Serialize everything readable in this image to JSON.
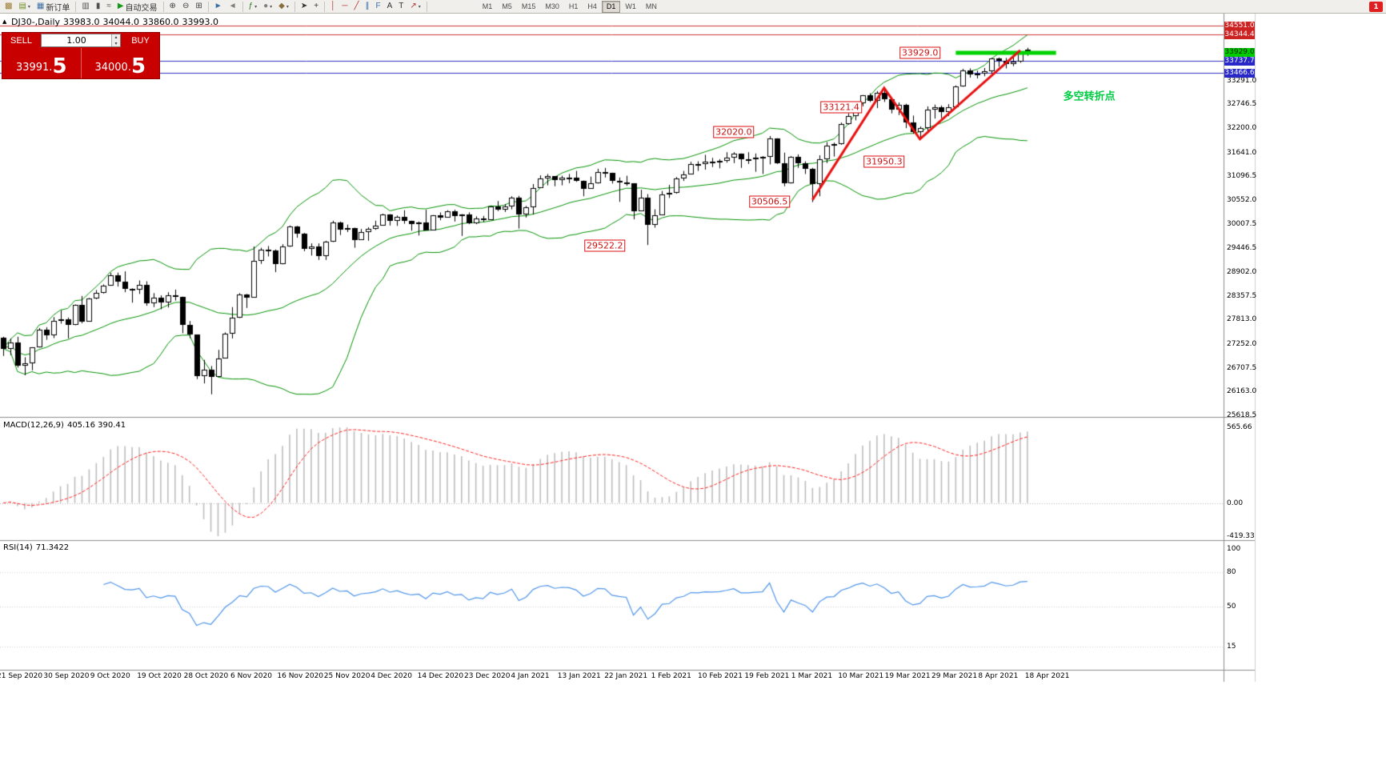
{
  "toolbar": {
    "items": [
      {
        "type": "btn",
        "name": "new-chart",
        "glyph": "▩",
        "color": "#9a7b2d"
      },
      {
        "type": "btn",
        "name": "chart-profiles",
        "glyph": "▤",
        "color": "#6b8e23",
        "caret": true
      },
      {
        "type": "btn",
        "name": "new-order",
        "glyph": "▦",
        "color": "#3a6ea5",
        "label": "新订单"
      },
      {
        "type": "sep"
      },
      {
        "type": "btn",
        "name": "chart-bars",
        "glyph": "▥",
        "color": "#505050"
      },
      {
        "type": "btn",
        "name": "chart-candlesticks",
        "glyph": "▮",
        "color": "#505050"
      },
      {
        "type": "btn",
        "name": "chart-line",
        "glyph": "≈",
        "color": "#505050"
      },
      {
        "type": "btn",
        "name": "autotrading",
        "glyph": "▶",
        "color": "#189818",
        "label": "自动交易"
      },
      {
        "type": "sep"
      },
      {
        "type": "btn",
        "name": "zoom-in",
        "glyph": "⊕",
        "color": "#404040"
      },
      {
        "type": "btn",
        "name": "zoom-out",
        "glyph": "⊖",
        "color": "#404040"
      },
      {
        "type": "btn",
        "name": "tile-windows",
        "glyph": "⊞",
        "color": "#404040"
      },
      {
        "type": "sep"
      },
      {
        "type": "btn",
        "name": "auto-scroll",
        "glyph": "►",
        "color": "#3a6ea5"
      },
      {
        "type": "btn",
        "name": "chart-shift",
        "glyph": "◄",
        "color": "#808080"
      },
      {
        "type": "sep"
      },
      {
        "type": "btn",
        "name": "indicators",
        "glyph": "ƒ",
        "color": "#1f7a1f",
        "caret": true
      },
      {
        "type": "btn",
        "name": "timeframes-menu",
        "glyph": "●",
        "color": "#808080",
        "caret": true
      },
      {
        "type": "btn",
        "name": "templates",
        "glyph": "◆",
        "color": "#8a6d3b",
        "caret": true
      },
      {
        "type": "sep"
      },
      {
        "type": "btn",
        "name": "cursor",
        "glyph": "➤",
        "color": "#303030"
      },
      {
        "type": "btn",
        "name": "crosshair",
        "glyph": "+",
        "color": "#303030"
      },
      {
        "type": "sep"
      },
      {
        "type": "btn",
        "name": "vertical-line",
        "glyph": "│",
        "color": "#b03030"
      },
      {
        "type": "btn",
        "name": "horizontal-line",
        "glyph": "─",
        "color": "#b03030"
      },
      {
        "type": "btn",
        "name": "trendline",
        "glyph": "╱",
        "color": "#b03030"
      },
      {
        "type": "btn",
        "name": "equidistant-channel",
        "glyph": "∥",
        "color": "#3a6ea5"
      },
      {
        "type": "btn",
        "name": "fibonacci",
        "glyph": "F",
        "color": "#3a6ea5"
      },
      {
        "type": "btn",
        "name": "text",
        "glyph": "A",
        "color": "#303030"
      },
      {
        "type": "btn",
        "name": "text-label",
        "glyph": "T",
        "color": "#303030"
      },
      {
        "type": "btn",
        "name": "arrows",
        "glyph": "↗",
        "color": "#b03030",
        "caret": true
      },
      {
        "type": "sep"
      }
    ],
    "timeframes": [
      "M1",
      "M5",
      "M15",
      "M30",
      "H1",
      "H4",
      "D1",
      "W1",
      "MN"
    ],
    "active_timeframe": "D1",
    "notification_count": "1"
  },
  "header": {
    "symbol_timeframe": "DJ30-,Daily",
    "open": "33983.0",
    "high": "34044.0",
    "low": "33860.0",
    "close": "33993.0"
  },
  "trade_panel": {
    "sell_label": "SELL",
    "buy_label": "BUY",
    "volume": "1.00",
    "sell_price": "33991.",
    "sell_price_big": "5",
    "buy_price": "34000.",
    "buy_price_big": "5"
  },
  "chart_data": {
    "type": "candlestick",
    "symbol": "DJ30-",
    "timeframe": "Daily",
    "price_axis_labels": [
      "33291.0",
      "32746.5",
      "32200.0",
      "31641.0",
      "31096.5",
      "30552.0",
      "30007.5",
      "29446.5",
      "28902.0",
      "28357.5",
      "27813.0",
      "27252.0",
      "26707.5",
      "26163.0",
      "25618.5"
    ],
    "axis_badges": [
      {
        "text": "34551.0",
        "price": 34551.0,
        "bg": "#cc2222",
        "fg": "#ffffff"
      },
      {
        "text": "34344.4",
        "price": 34344.4,
        "bg": "#cc2222",
        "fg": "#ffffff"
      },
      {
        "text": "33929.0",
        "price": 33929.0,
        "bg": "#00cc00",
        "fg": "#002200"
      },
      {
        "text": "33737.7",
        "price": 33737.7,
        "bg": "#2828c8",
        "fg": "#ffffff"
      },
      {
        "text": "33466.6",
        "price": 33466.6,
        "bg": "#2828c8",
        "fg": "#ffffff"
      }
    ],
    "hlines": [
      {
        "price": 34551.0,
        "color": "#cc3333"
      },
      {
        "price": 34344.4,
        "color": "#cc3333"
      },
      {
        "price": 33737.7,
        "color": "#3030c0"
      },
      {
        "price": 33466.6,
        "color": "#3030c0"
      }
    ],
    "support_segment": {
      "price": 33929.0,
      "from_bar": 133,
      "to_bar": 147,
      "color": "#00d200",
      "width": 5
    },
    "zigzag": {
      "color": "#e81010",
      "width": 3,
      "points": [
        [
          113,
          30560
        ],
        [
          123,
          33121.4
        ],
        [
          128,
          31950.3
        ],
        [
          142,
          33985
        ]
      ]
    },
    "callouts": [
      {
        "text": "29522.2",
        "bar": 84,
        "price": 29510
      },
      {
        "text": "30506.5",
        "bar": 107,
        "price": 30520
      },
      {
        "text": "32020.0",
        "bar": 102,
        "price": 32120
      },
      {
        "text": "31950.3",
        "bar": 123,
        "price": 31430
      },
      {
        "text": "33121.4",
        "bar": 117,
        "price": 32680
      },
      {
        "text": "33929.0",
        "bar": 128,
        "price": 33929
      }
    ],
    "note": {
      "text": "多空转折点",
      "bar": 148,
      "price": 32960,
      "color": "#00cc44"
    },
    "bollinger": {
      "period": 20,
      "deviation": 2,
      "color": "#009000"
    },
    "macd": {
      "label_name": "MACD(12,26,9)",
      "values": "405.16 390.41",
      "params": [
        12,
        26,
        9
      ],
      "axis_labels": [
        "565.66",
        "0.00",
        "-419.33"
      ],
      "bar_color": "#bdbdbd",
      "signal_color": "#ff2020"
    },
    "rsi": {
      "label_name": "RSI(14)",
      "value": "71.3422",
      "period": 14,
      "axis_labels": [
        100,
        80,
        50,
        15
      ],
      "color": "#4f94e8"
    },
    "dates": [
      "21 Sep 2020",
      "30 Sep 2020",
      "9 Oct 2020",
      "19 Oct 2020",
      "28 Oct 2020",
      "6 Nov 2020",
      "16 Nov 2020",
      "25 Nov 2020",
      "4 Dec 2020",
      "14 Dec 2020",
      "23 Dec 2020",
      "4 Jan 2021",
      "13 Jan 2021",
      "22 Jan 2021",
      "1 Feb 2021",
      "10 Feb 2021",
      "19 Feb 2021",
      "1 Mar 2021",
      "10 Mar 2021",
      "19 Mar 2021",
      "29 Mar 2021",
      "8 Apr 2021",
      "18 Apr 2021"
    ],
    "candles": [
      [
        27400,
        27420,
        26980,
        27148
      ],
      [
        27148,
        27380,
        27000,
        27288
      ],
      [
        27288,
        27420,
        26714,
        26763
      ],
      [
        26763,
        26950,
        26537,
        26815
      ],
      [
        26815,
        27180,
        26650,
        27174
      ],
      [
        27174,
        27620,
        27174,
        27584
      ],
      [
        27584,
        27640,
        27350,
        27453
      ],
      [
        27453,
        27870,
        27390,
        27782
      ],
      [
        27782,
        28025,
        27720,
        27817
      ],
      [
        27817,
        27860,
        27382,
        27683
      ],
      [
        27683,
        28160,
        27683,
        28149
      ],
      [
        28149,
        28354,
        27730,
        27773
      ],
      [
        27773,
        28310,
        27773,
        28303
      ],
      [
        28303,
        28490,
        28280,
        28426
      ],
      [
        28426,
        28620,
        28410,
        28587
      ],
      [
        28587,
        28890,
        28587,
        28837
      ],
      [
        28837,
        28890,
        28570,
        28680
      ],
      [
        28680,
        28920,
        28440,
        28514
      ],
      [
        28514,
        28530,
        28200,
        28494
      ],
      [
        28494,
        28710,
        28400,
        28606
      ],
      [
        28606,
        28690,
        28130,
        28195
      ],
      [
        28195,
        28420,
        28100,
        28308
      ],
      [
        28308,
        28370,
        28050,
        28211
      ],
      [
        28211,
        28440,
        28090,
        28364
      ],
      [
        28364,
        28500,
        28250,
        28336
      ],
      [
        28336,
        28340,
        27500,
        27686
      ],
      [
        27686,
        27780,
        27390,
        27463
      ],
      [
        27463,
        27470,
        26450,
        26520
      ],
      [
        26520,
        26890,
        26350,
        26659
      ],
      [
        26659,
        26750,
        26100,
        26502
      ],
      [
        26502,
        27120,
        26500,
        26925
      ],
      [
        26925,
        27520,
        26925,
        27481
      ],
      [
        27481,
        28100,
        27380,
        27848
      ],
      [
        27848,
        28420,
        27848,
        28390
      ],
      [
        28390,
        28400,
        28080,
        28323
      ],
      [
        28323,
        29490,
        28323,
        29158
      ],
      [
        29158,
        29460,
        29090,
        29421
      ],
      [
        29421,
        29500,
        29260,
        29398
      ],
      [
        29398,
        29420,
        28900,
        29080
      ],
      [
        29080,
        29540,
        29080,
        29480
      ],
      [
        29480,
        29970,
        29480,
        29950
      ],
      [
        29950,
        29960,
        29690,
        29783
      ],
      [
        29783,
        29800,
        29380,
        29438
      ],
      [
        29438,
        29560,
        29280,
        29483
      ],
      [
        29483,
        29560,
        29180,
        29263
      ],
      [
        29263,
        29620,
        29180,
        29591
      ],
      [
        29591,
        30080,
        29591,
        30046
      ],
      [
        30046,
        30060,
        29750,
        29872
      ],
      [
        29872,
        29990,
        29820,
        29910
      ],
      [
        29910,
        29920,
        29460,
        29639
      ],
      [
        29639,
        29890,
        29639,
        29824
      ],
      [
        29824,
        29930,
        29620,
        29884
      ],
      [
        29884,
        30080,
        29870,
        29970
      ],
      [
        29970,
        30240,
        29970,
        30218
      ],
      [
        30218,
        30230,
        29970,
        30069
      ],
      [
        30069,
        30200,
        29960,
        30174
      ],
      [
        30174,
        30320,
        30010,
        30069
      ],
      [
        30069,
        30080,
        29850,
        29999
      ],
      [
        29999,
        30060,
        29740,
        30046
      ],
      [
        30046,
        30330,
        29860,
        29862
      ],
      [
        29862,
        30210,
        29860,
        30199
      ],
      [
        30199,
        30270,
        30090,
        30154
      ],
      [
        30154,
        30320,
        30150,
        30304
      ],
      [
        30304,
        30330,
        30060,
        30179
      ],
      [
        30179,
        30230,
        29730,
        30216
      ],
      [
        30216,
        30270,
        30000,
        30015
      ],
      [
        30015,
        30180,
        30000,
        30130
      ],
      [
        30130,
        30190,
        30050,
        30096
      ],
      [
        30096,
        30420,
        30096,
        30404
      ],
      [
        30404,
        30530,
        30300,
        30336
      ],
      [
        30336,
        30460,
        30280,
        30410
      ],
      [
        30410,
        30640,
        30340,
        30606
      ],
      [
        30606,
        30650,
        29900,
        30224
      ],
      [
        30224,
        30420,
        30150,
        30392
      ],
      [
        30392,
        30920,
        30220,
        30830
      ],
      [
        30830,
        31120,
        30830,
        31041
      ],
      [
        31041,
        31150,
        30890,
        31098
      ],
      [
        31098,
        31100,
        30870,
        31008
      ],
      [
        31008,
        31110,
        30890,
        31069
      ],
      [
        31069,
        31150,
        30940,
        31061
      ],
      [
        31061,
        31220,
        30970,
        30992
      ],
      [
        30992,
        31000,
        30640,
        30814
      ],
      [
        30814,
        31090,
        30810,
        30931
      ],
      [
        30931,
        31270,
        30930,
        31188
      ],
      [
        31188,
        31290,
        31070,
        31176
      ],
      [
        31176,
        31180,
        30930,
        30997
      ],
      [
        30997,
        31070,
        30510,
        30960
      ],
      [
        30960,
        31110,
        30880,
        30937
      ],
      [
        30937,
        30940,
        30110,
        30303
      ],
      [
        30303,
        30790,
        30300,
        30603
      ],
      [
        30603,
        30690,
        29522,
        29983
      ],
      [
        29983,
        30340,
        29920,
        30212
      ],
      [
        30212,
        30760,
        30212,
        30687
      ],
      [
        30687,
        30900,
        30600,
        30724
      ],
      [
        30724,
        31080,
        30700,
        31056
      ],
      [
        31056,
        31220,
        30990,
        31148
      ],
      [
        31148,
        31430,
        31140,
        31386
      ],
      [
        31386,
        31440,
        31220,
        31376
      ],
      [
        31376,
        31590,
        31250,
        31438
      ],
      [
        31438,
        31520,
        31310,
        31430
      ],
      [
        31430,
        31490,
        31280,
        31458
      ],
      [
        31458,
        31650,
        31410,
        31523
      ],
      [
        31523,
        31650,
        31400,
        31613
      ],
      [
        31613,
        31620,
        31290,
        31493
      ],
      [
        31493,
        31650,
        31380,
        31494
      ],
      [
        31494,
        31620,
        31200,
        31521
      ],
      [
        31521,
        31560,
        31150,
        31537
      ],
      [
        31537,
        32020,
        31370,
        31962
      ],
      [
        31962,
        31970,
        31380,
        31402
      ],
      [
        31402,
        31640,
        30870,
        30932
      ],
      [
        30932,
        31560,
        30932,
        31536
      ],
      [
        31536,
        31600,
        31290,
        31392
      ],
      [
        31392,
        31440,
        31150,
        31270
      ],
      [
        31270,
        31290,
        30506,
        30924
      ],
      [
        30924,
        31580,
        30640,
        31496
      ],
      [
        31496,
        31880,
        31400,
        31802
      ],
      [
        31802,
        31870,
        31550,
        31833
      ],
      [
        31833,
        32330,
        31820,
        32297
      ],
      [
        32297,
        32540,
        32280,
        32486
      ],
      [
        32486,
        32790,
        32380,
        32779
      ],
      [
        32779,
        32960,
        32700,
        32953
      ],
      [
        32953,
        33000,
        32800,
        32826
      ],
      [
        32826,
        33050,
        32660,
        33015
      ],
      [
        33015,
        33121,
        32800,
        32862
      ],
      [
        32862,
        32900,
        32540,
        32628
      ],
      [
        32628,
        32790,
        32500,
        32731
      ],
      [
        32731,
        32760,
        32200,
        32323
      ],
      [
        32323,
        32490,
        32070,
        32120
      ],
      [
        32120,
        32240,
        31950,
        32200
      ],
      [
        32200,
        32700,
        32130,
        32619
      ],
      [
        32619,
        32740,
        32420,
        32672
      ],
      [
        32672,
        32720,
        32430,
        32567
      ],
      [
        32567,
        32750,
        32480,
        32682
      ],
      [
        32682,
        33180,
        32680,
        33153
      ],
      [
        33153,
        33560,
        33150,
        33527
      ],
      [
        33527,
        33570,
        33360,
        33430
      ],
      [
        33430,
        33520,
        33340,
        33446
      ],
      [
        33446,
        33580,
        33390,
        33503
      ],
      [
        33503,
        33810,
        33450,
        33800
      ],
      [
        33800,
        33820,
        33610,
        33745
      ],
      [
        33745,
        33810,
        33570,
        33677
      ],
      [
        33677,
        33870,
        33620,
        33730
      ],
      [
        33730,
        33960,
        33700,
        33960
      ],
      [
        33983,
        34044,
        33860,
        33993
      ]
    ]
  }
}
